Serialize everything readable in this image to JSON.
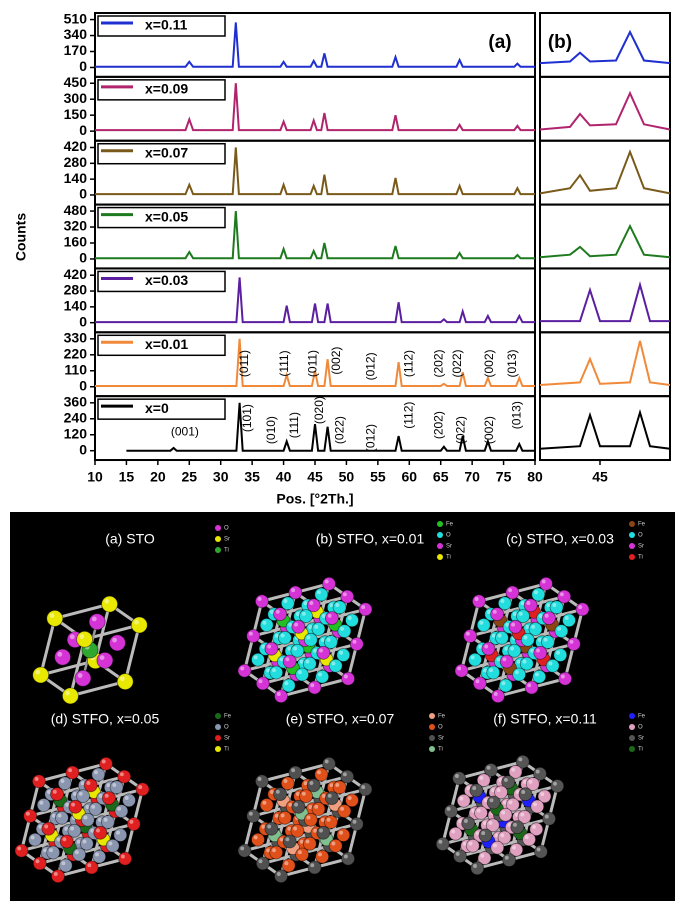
{
  "chart_data": [
    {
      "type": "line",
      "panel_label": "(a)",
      "ylabel": "Counts",
      "xlim": [
        10,
        80
      ],
      "ylim": [
        -100,
        580
      ],
      "yticks": [
        0,
        170,
        340,
        510
      ],
      "x": [
        10,
        24.4,
        25,
        25.6,
        31.9,
        32.4,
        32.9,
        39.5,
        40,
        40.5,
        44.3,
        44.8,
        45.3,
        46,
        46.5,
        47,
        57.3,
        57.8,
        58.3,
        67.5,
        68,
        68.5,
        76.7,
        77.2,
        77.7,
        80
      ],
      "series": [
        {
          "name": "x=0.11",
          "color": "#1f2fd0",
          "values": [
            8,
            8,
            60,
            8,
            8,
            480,
            8,
            8,
            60,
            8,
            8,
            70,
            8,
            8,
            150,
            8,
            8,
            110,
            8,
            8,
            80,
            8,
            8,
            40,
            8,
            8
          ]
        }
      ]
    },
    {
      "type": "line",
      "xlim": [
        10,
        80
      ],
      "ylim": [
        -90,
        510
      ],
      "yticks": [
        0,
        150,
        300,
        450
      ],
      "x": [
        10,
        24.4,
        25,
        25.6,
        31.9,
        32.4,
        32.9,
        39.5,
        40,
        40.5,
        44.3,
        44.8,
        45.3,
        46,
        46.5,
        47,
        57.3,
        57.8,
        58.3,
        67.5,
        68,
        68.5,
        76.7,
        77.2,
        77.7,
        80
      ],
      "series": [
        {
          "name": "x=0.09",
          "color": "#b0246e",
          "values": [
            10,
            10,
            110,
            10,
            10,
            450,
            10,
            10,
            90,
            10,
            10,
            100,
            10,
            10,
            170,
            10,
            10,
            150,
            10,
            10,
            60,
            10,
            10,
            50,
            10,
            10
          ]
        }
      ]
    },
    {
      "type": "line",
      "xlim": [
        10,
        80
      ],
      "ylim": [
        -85,
        480
      ],
      "yticks": [
        0,
        140,
        280,
        420
      ],
      "x": [
        10,
        24.4,
        25,
        25.6,
        31.9,
        32.4,
        32.9,
        39.5,
        40,
        40.5,
        44.3,
        44.8,
        45.3,
        46,
        46.5,
        47,
        57.3,
        57.8,
        58.3,
        67.5,
        68,
        68.5,
        76.7,
        77.2,
        77.7,
        80
      ],
      "series": [
        {
          "name": "x=0.07",
          "color": "#7a5a1a",
          "values": [
            8,
            8,
            90,
            8,
            8,
            420,
            8,
            8,
            90,
            8,
            8,
            80,
            8,
            8,
            180,
            8,
            8,
            150,
            8,
            8,
            80,
            8,
            8,
            60,
            8,
            8
          ]
        }
      ]
    },
    {
      "type": "line",
      "xlim": [
        10,
        80
      ],
      "ylim": [
        -95,
        545
      ],
      "yticks": [
        0,
        160,
        320,
        480
      ],
      "x": [
        10,
        24.4,
        25,
        25.6,
        31.9,
        32.4,
        32.9,
        39.5,
        40,
        40.5,
        44.3,
        44.8,
        45.3,
        46,
        46.5,
        47,
        57.3,
        57.8,
        58.3,
        67.5,
        68,
        68.5,
        76.7,
        77.2,
        77.7,
        80
      ],
      "series": [
        {
          "name": "x=0.05",
          "color": "#1e7a1e",
          "values": [
            8,
            8,
            70,
            8,
            8,
            480,
            8,
            8,
            100,
            8,
            8,
            80,
            8,
            8,
            160,
            8,
            8,
            130,
            8,
            8,
            60,
            8,
            8,
            40,
            8,
            8
          ]
        }
      ]
    },
    {
      "type": "line",
      "xlim": [
        10,
        80
      ],
      "ylim": [
        -85,
        480
      ],
      "yticks": [
        0,
        140,
        280,
        420
      ],
      "x": [
        10,
        32.5,
        33,
        33.5,
        40,
        40.5,
        41,
        44.5,
        45,
        45.5,
        46.5,
        47,
        47.5,
        57.8,
        58.3,
        58.8,
        65,
        65.5,
        66,
        68,
        68.5,
        69,
        72,
        72.5,
        73,
        77,
        77.5,
        78,
        80
      ],
      "series": [
        {
          "name": "x=0.03",
          "color": "#5b1fa0",
          "values": [
            5,
            5,
            400,
            5,
            5,
            150,
            5,
            5,
            170,
            5,
            5,
            170,
            5,
            5,
            180,
            5,
            5,
            30,
            5,
            5,
            100,
            5,
            5,
            60,
            5,
            5,
            60,
            5,
            5
          ]
        }
      ]
    },
    {
      "type": "line",
      "xlim": [
        10,
        80
      ],
      "ylim": [
        -65,
        375
      ],
      "yticks": [
        0,
        110,
        220,
        330
      ],
      "x": [
        10,
        32.5,
        33,
        33.5,
        40,
        40.5,
        41,
        44.5,
        45,
        45.5,
        46.5,
        47,
        47.5,
        57.8,
        58.3,
        58.8,
        65,
        65.5,
        66,
        68,
        68.5,
        69,
        72,
        72.5,
        73,
        77,
        77.5,
        78,
        80
      ],
      "series": [
        {
          "name": "x=0.01",
          "color": "#f08a3a",
          "values": [
            5,
            5,
            330,
            5,
            5,
            80,
            5,
            5,
            110,
            5,
            5,
            190,
            5,
            5,
            170,
            5,
            5,
            20,
            5,
            5,
            100,
            5,
            5,
            60,
            5,
            5,
            60,
            5,
            5
          ]
        }
      ],
      "annotations": [
        {
          "text": "(011)",
          "x": 33.8,
          "y": 160,
          "vertical": true
        },
        {
          "text": "(111)",
          "x": 40.2,
          "y": 160,
          "vertical": true
        },
        {
          "text": "(011)",
          "x": 44.7,
          "y": 160,
          "vertical": true
        },
        {
          "text": "(002)",
          "x": 48.5,
          "y": 180,
          "vertical": true
        },
        {
          "text": "(012)",
          "x": 54,
          "y": 140,
          "vertical": true
        },
        {
          "text": "(112)",
          "x": 60,
          "y": 160,
          "vertical": true
        },
        {
          "text": "(202)",
          "x": 64.8,
          "y": 160,
          "vertical": true
        },
        {
          "text": "(022)",
          "x": 67.7,
          "y": 160,
          "vertical": true
        },
        {
          "text": "(002)",
          "x": 72.8,
          "y": 160,
          "vertical": true
        },
        {
          "text": "(013)",
          "x": 76.5,
          "y": 160,
          "vertical": true
        }
      ]
    },
    {
      "type": "line",
      "xlim": [
        10,
        80
      ],
      "ylim": [
        -70,
        410
      ],
      "yticks": [
        0,
        120,
        240,
        360
      ],
      "xticks": [
        10,
        15,
        20,
        25,
        30,
        35,
        40,
        45,
        50,
        55,
        60,
        65,
        70,
        75,
        80
      ],
      "xlabel": "Pos. [°2Th.]",
      "x": [
        15,
        22,
        22.5,
        23,
        32.5,
        33,
        33.5,
        40,
        40.5,
        41,
        44.5,
        45,
        45.5,
        46.5,
        47,
        47.5,
        57.8,
        58.3,
        58.8,
        65,
        65.5,
        66,
        68,
        68.5,
        69,
        72,
        72.5,
        73,
        77,
        77.5,
        78,
        80
      ],
      "series": [
        {
          "name": "x=0",
          "color": "#000000",
          "values": [
            0,
            0,
            20,
            0,
            0,
            360,
            0,
            0,
            70,
            0,
            0,
            200,
            0,
            0,
            180,
            0,
            0,
            110,
            0,
            0,
            30,
            0,
            0,
            110,
            0,
            0,
            70,
            0,
            0,
            50,
            0,
            0
          ]
        }
      ],
      "annotations": [
        {
          "text": "(001)",
          "x": 24.3,
          "y": 140,
          "vertical": false
        },
        {
          "text": "(101)",
          "x": 34.3,
          "y": 245,
          "vertical": true
        },
        {
          "text": "(010)",
          "x": 38.1,
          "y": 155,
          "vertical": true
        },
        {
          "text": "(111)",
          "x": 41.8,
          "y": 192,
          "vertical": true
        },
        {
          "text": "(020)",
          "x": 45.8,
          "y": 305,
          "vertical": true
        },
        {
          "text": "(022)",
          "x": 49,
          "y": 155,
          "vertical": true
        },
        {
          "text": "(012)",
          "x": 54,
          "y": 95,
          "vertical": true
        },
        {
          "text": "(112)",
          "x": 60,
          "y": 267,
          "vertical": true
        },
        {
          "text": "(202)",
          "x": 64.8,
          "y": 192,
          "vertical": true
        },
        {
          "text": "(022)",
          "x": 68.3,
          "y": 155,
          "vertical": true
        },
        {
          "text": "(002)",
          "x": 72.8,
          "y": 155,
          "vertical": true
        },
        {
          "text": "(013)",
          "x": 77.2,
          "y": 267,
          "vertical": true
        }
      ]
    },
    {
      "type": "line",
      "panel_label": "(b)",
      "xlim": [
        42,
        48.5
      ],
      "ylim": [
        0,
        100
      ],
      "xticks": [
        45
      ],
      "series": [
        {
          "color": "#1f2fd0",
          "x": [
            42,
            43.5,
            44,
            44.5,
            45.8,
            46.5,
            47.2,
            48.5
          ],
          "values": [
            15,
            18,
            35,
            18,
            20,
            75,
            20,
            15
          ]
        },
        {
          "color": "#b0246e",
          "x": [
            42,
            43.5,
            44,
            44.5,
            45.8,
            46.5,
            47.2,
            48.5
          ],
          "values": [
            10,
            15,
            40,
            18,
            20,
            80,
            20,
            10
          ]
        },
        {
          "color": "#7a5a1a",
          "x": [
            42,
            43.5,
            44,
            44.5,
            45.8,
            46.5,
            47.2,
            48.5
          ],
          "values": [
            10,
            20,
            45,
            15,
            20,
            90,
            20,
            10
          ]
        },
        {
          "color": "#1e7a1e",
          "x": [
            42,
            43.5,
            44,
            44.5,
            45.8,
            46.5,
            47.2,
            48.5
          ],
          "values": [
            10,
            15,
            30,
            12,
            15,
            70,
            15,
            10
          ]
        },
        {
          "color": "#5b1fa0",
          "x": [
            42,
            44,
            44.5,
            45,
            46.5,
            47,
            47.5,
            48.5
          ],
          "values": [
            10,
            10,
            70,
            10,
            10,
            80,
            10,
            10
          ]
        },
        {
          "color": "#f08a3a",
          "x": [
            42,
            44,
            44.5,
            45,
            46.5,
            47,
            47.5,
            48.5
          ],
          "values": [
            10,
            15,
            60,
            12,
            15,
            95,
            15,
            10
          ]
        },
        {
          "color": "#000000",
          "x": [
            42,
            44,
            44.5,
            45,
            46.5,
            47,
            47.5,
            48.5
          ],
          "values": [
            10,
            15,
            75,
            15,
            15,
            80,
            15,
            10
          ]
        }
      ]
    }
  ],
  "structures": [
    {
      "title": "(a) STO",
      "legend": [
        {
          "label": "O",
          "color": "#d633d6"
        },
        {
          "label": "Sr",
          "color": "#e8e800"
        },
        {
          "label": "Ti",
          "color": "#2ea82e"
        }
      ]
    },
    {
      "title": "(b) STFO, x=0.01",
      "legend": [
        {
          "label": "Fe",
          "color": "#22c022"
        },
        {
          "label": "O",
          "color": "#22dddd"
        },
        {
          "label": "Sr",
          "color": "#d633d6"
        },
        {
          "label": "Ti",
          "color": "#e8e800"
        }
      ]
    },
    {
      "title": "(c) STFO, x=0.03",
      "legend": [
        {
          "label": "Fe",
          "color": "#8b4513"
        },
        {
          "label": "O",
          "color": "#22dddd"
        },
        {
          "label": "Sr",
          "color": "#d633d6"
        },
        {
          "label": "Ti",
          "color": "#e02020"
        }
      ]
    },
    {
      "title": "(d) STFO, x=0.05",
      "legend": [
        {
          "label": "Fe",
          "color": "#1a6a1a"
        },
        {
          "label": "O",
          "color": "#8a95b0"
        },
        {
          "label": "Sr",
          "color": "#e02020"
        },
        {
          "label": "Ti",
          "color": "#e8e800"
        }
      ]
    },
    {
      "title": "(e) STFO, x=0.07",
      "legend": [
        {
          "label": "Fe",
          "color": "#f0a080"
        },
        {
          "label": "O",
          "color": "#e0501a"
        },
        {
          "label": "Sr",
          "color": "#505050"
        },
        {
          "label": "Ti",
          "color": "#80c090"
        }
      ]
    },
    {
      "title": "(f) STFO, x=0.11",
      "legend": [
        {
          "label": "Fe",
          "color": "#2020ff"
        },
        {
          "label": "O",
          "color": "#e0a0c0"
        },
        {
          "label": "Sr",
          "color": "#555555"
        },
        {
          "label": "Ti",
          "color": "#1a6a1a"
        }
      ]
    }
  ]
}
